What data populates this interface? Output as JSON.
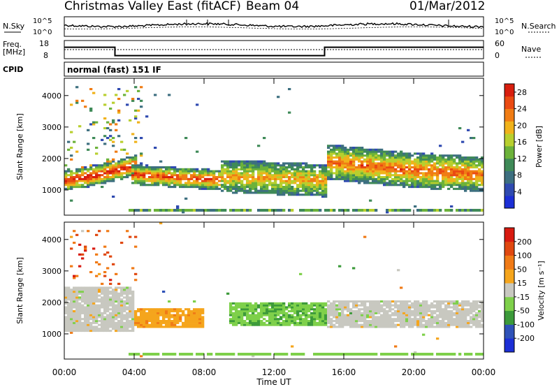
{
  "header": {
    "station": "Christmas Valley East (fitACF)",
    "beam": "Beam 04",
    "date": "01/Mar/2012"
  },
  "noise_panel": {
    "left_label": "N.Sky",
    "left_ticks": [
      "10^5",
      "10^0"
    ],
    "right_label": "N.Search",
    "right_ticks": [
      "10^5",
      "10^0"
    ]
  },
  "freq_panel": {
    "left_label_1": "Freq.",
    "left_label_2": "[MHz]",
    "left_ticks": [
      "18",
      "8"
    ],
    "right_label": "Nave",
    "right_ticks": [
      "60",
      "0"
    ]
  },
  "cpid": {
    "label": "CPID",
    "mode": "normal (fast) 151 IF"
  },
  "colors": {
    "power_scale": [
      "#1c2fd6",
      "#2f4ab0",
      "#3d6f80",
      "#3f8a58",
      "#6cb23a",
      "#b8cf2e",
      "#f0b21a",
      "#f07c14",
      "#ea4a12",
      "#d81e0e"
    ],
    "velocity_scale": [
      "#1c2fd6",
      "#2f52b8",
      "#3c9a3a",
      "#7ed04a",
      "#c8c8c0",
      "#f5a51c",
      "#f07a16",
      "#e04810",
      "#d81a10"
    ]
  },
  "chart_data": [
    {
      "type": "heatmap",
      "title": "",
      "ylabel": "Slant Range [km]",
      "xlabel": "",
      "xlim": [
        "00:00",
        "24:00"
      ],
      "ylim": [
        200,
        4550
      ],
      "yticks": [
        "1000",
        "2000",
        "3000",
        "4000"
      ],
      "colorbar": {
        "label": "Power [dB]",
        "ticks": [
          "4",
          "8",
          "12",
          "16",
          "20",
          "24",
          "28"
        ],
        "range": [
          0,
          30
        ]
      },
      "bands": [
        {
          "t0": 0.0,
          "t1": 4.2,
          "r_center": [
            1300,
            1420,
            1600,
            1800
          ],
          "width": 320,
          "value": 22
        },
        {
          "t0": 3.9,
          "t1": 9.0,
          "r_center": [
            1500,
            1400,
            1320
          ],
          "width": 320,
          "value": 20
        },
        {
          "t0": 9.0,
          "t1": 15.0,
          "r_center": [
            1450,
            1300
          ],
          "width": 520,
          "value": 14
        },
        {
          "t0": 15.0,
          "t1": 24.0,
          "r_center": [
            1900,
            1650,
            1500
          ],
          "width": 560,
          "value": 18
        }
      ]
    },
    {
      "type": "heatmap",
      "title": "",
      "ylabel": "Slant Range [km]",
      "xlabel": "Time UT",
      "xlim": [
        "00:00",
        "24:00"
      ],
      "xticks": [
        "00:00",
        "04:00",
        "08:00",
        "12:00",
        "16:00",
        "20:00",
        "00:00"
      ],
      "ylim": [
        200,
        4550
      ],
      "yticks": [
        "1000",
        "2000",
        "3000",
        "4000"
      ],
      "colorbar": {
        "label": "Velocity [m s⁻¹]",
        "ticks": [
          "200",
          "100",
          "50",
          "15",
          "-15",
          "-50",
          "-100",
          "-200"
        ],
        "range": [
          -250,
          250
        ]
      },
      "regions": [
        {
          "t0": 0.0,
          "t1": 4.0,
          "r0": 1100,
          "r1": 2500,
          "value": 0
        },
        {
          "t0": 4.0,
          "t1": 8.0,
          "r0": 1200,
          "r1": 1800,
          "value": 60
        },
        {
          "t0": 9.5,
          "t1": 15.0,
          "r0": 1250,
          "r1": 2000,
          "value": -70
        },
        {
          "t0": 15.0,
          "t1": 24.0,
          "r0": 1200,
          "r1": 2050,
          "value": 0
        }
      ]
    }
  ]
}
